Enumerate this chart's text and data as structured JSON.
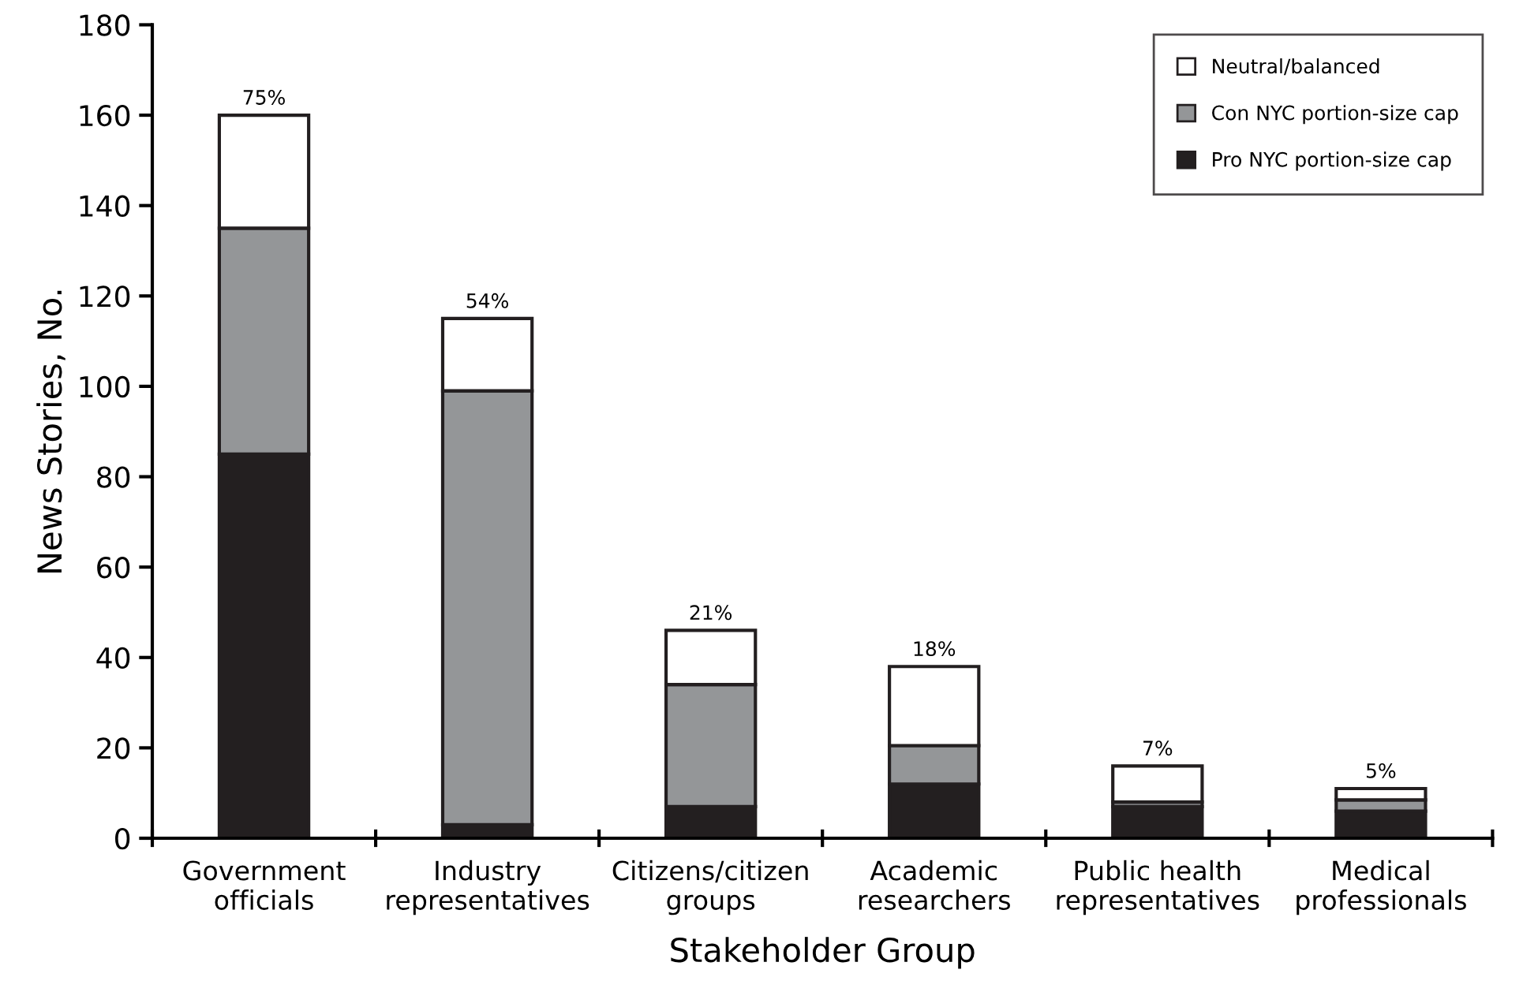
{
  "chart_data": {
    "type": "bar",
    "stacked": true,
    "xlabel": "Stakeholder Group",
    "ylabel": "News Stories, No.",
    "categories": [
      "Government\nofficials",
      "Industry\nrepresentatives",
      "Citizens/citizen\ngroups",
      "Academic\nresearchers",
      "Public health\nrepresentatives",
      "Medical\nprofessionals"
    ],
    "series": [
      {
        "name": "Pro NYC portion-size cap",
        "color": "#231f20",
        "values": [
          85,
          3,
          7,
          12,
          7,
          6
        ]
      },
      {
        "name": "Con NYC portion-size cap",
        "color": "#949698",
        "values": [
          50,
          96,
          27,
          8.5,
          1,
          2.5
        ]
      },
      {
        "name": "Neutral/balanced",
        "color": "#ffffff",
        "values": [
          25,
          16,
          12,
          17.5,
          8,
          2.5
        ]
      }
    ],
    "annotations": [
      {
        "text": "75%",
        "x": "Government\nofficials",
        "y": 160
      },
      {
        "text": "54%",
        "x": "Industry\nrepresentatives",
        "y": 115
      },
      {
        "text": "21%",
        "x": "Citizens/citizen\ngroups",
        "y": 46
      },
      {
        "text": "18%",
        "x": "Academic\nresearchers",
        "y": 38
      },
      {
        "text": "7%",
        "x": "Public health\nrepresentatives",
        "y": 16
      },
      {
        "text": "5%",
        "x": "Medical\nprofessionals",
        "y": 11
      }
    ],
    "ylim": [
      0,
      180
    ],
    "yticks": [
      0,
      20,
      40,
      60,
      80,
      100,
      120,
      140,
      160,
      180
    ],
    "grid": false,
    "legend": "top right"
  }
}
